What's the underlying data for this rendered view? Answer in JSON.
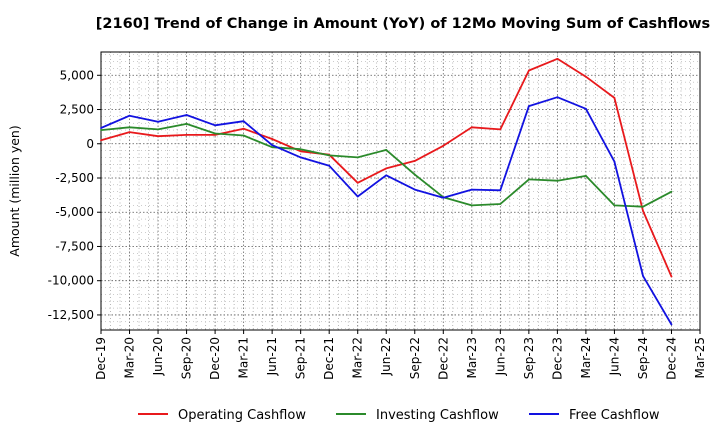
{
  "chart_data": {
    "type": "line",
    "title": "[2160]  Trend of Change in Amount (YoY) of 12Mo Moving Sum of Cashflows",
    "xlabel": "",
    "ylabel": "Amount (million yen)",
    "categories": [
      "Dec-19",
      "Mar-20",
      "Jun-20",
      "Sep-20",
      "Dec-20",
      "Mar-21",
      "Jun-21",
      "Sep-21",
      "Dec-21",
      "Mar-22",
      "Jun-22",
      "Sep-22",
      "Dec-22",
      "Mar-23",
      "Jun-23",
      "Sep-23",
      "Dec-23",
      "Mar-24",
      "Jun-24",
      "Sep-24",
      "Dec-24",
      "Mar-25"
    ],
    "y_ticks": [
      5000,
      2500,
      0,
      -2500,
      -5000,
      -7500,
      -10000,
      -12500
    ],
    "y_tick_labels": [
      "5,000",
      "2,500",
      "0",
      "-2,500",
      "-5,000",
      "-7,500",
      "-10,000",
      "-12,500"
    ],
    "ylim": [
      -13600,
      6700
    ],
    "grid": true,
    "legend_position": "bottom",
    "series": [
      {
        "name": "Operating Cashflow",
        "color": "#e8191c",
        "values": [
          250,
          850,
          550,
          650,
          650,
          1100,
          350,
          -550,
          -800,
          -2850,
          -1800,
          -1250,
          -150,
          1200,
          1050,
          5350,
          6200,
          4900,
          3350,
          -4900,
          -9700,
          null
        ]
      },
      {
        "name": "Investing Cashflow",
        "color": "#2b8a2b",
        "values": [
          1000,
          1200,
          1050,
          1450,
          750,
          600,
          -250,
          -400,
          -850,
          -1000,
          -450,
          -2250,
          -3900,
          -4500,
          -4400,
          -2600,
          -2700,
          -2350,
          -4500,
          -4600,
          -3500,
          null
        ]
      },
      {
        "name": "Free Cashflow",
        "color": "#1212e0",
        "values": [
          1150,
          2050,
          1600,
          2100,
          1350,
          1650,
          -100,
          -1000,
          -1600,
          -3850,
          -2300,
          -3350,
          -3950,
          -3350,
          -3400,
          2750,
          3400,
          2550,
          -1300,
          -9650,
          -13200,
          null
        ]
      }
    ]
  }
}
